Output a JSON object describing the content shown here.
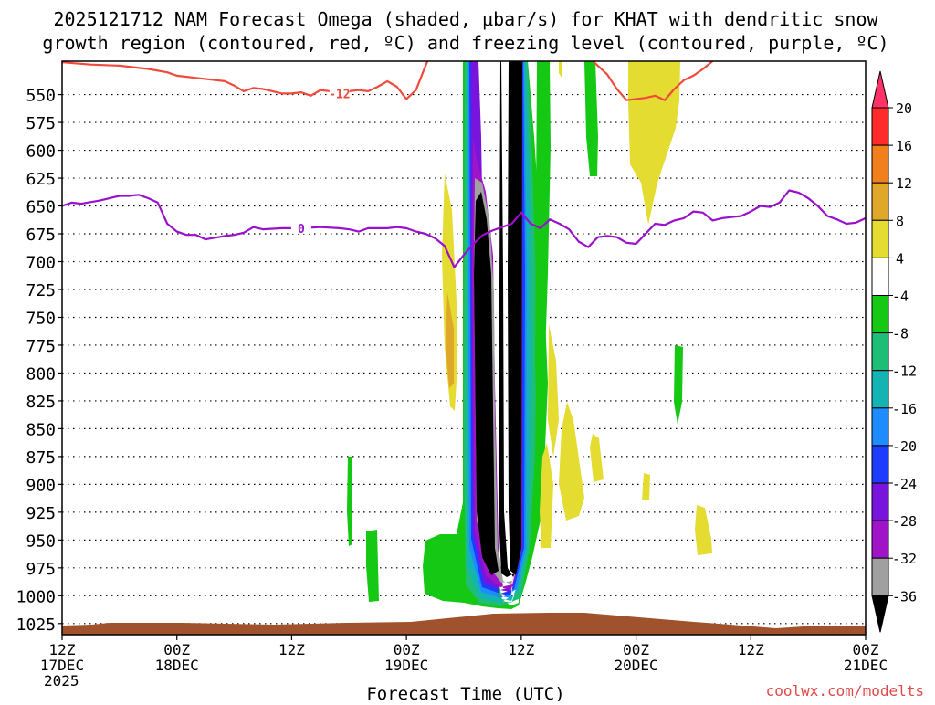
{
  "chart_data": {
    "type": "heatmap",
    "title_lines": [
      "2025121712 NAM Forecast Omega (shaded, μbar/s) for KHAT with dendritic snow",
      "growth region (contoured, red, ºC) and freezing level (contoured, purple, ºC)"
    ],
    "xlabel": "Forecast Time (UTC)",
    "credit": "coolwx.com/modelts",
    "x_range_hours": [
      0,
      84
    ],
    "x_ticks": [
      {
        "h": 0,
        "lines": [
          "12Z",
          "17DEC",
          "2025"
        ]
      },
      {
        "h": 12,
        "lines": [
          "00Z",
          "18DEC"
        ]
      },
      {
        "h": 24,
        "lines": [
          "12Z"
        ]
      },
      {
        "h": 36,
        "lines": [
          "00Z",
          "19DEC"
        ]
      },
      {
        "h": 48,
        "lines": [
          "12Z"
        ]
      },
      {
        "h": 60,
        "lines": [
          "00Z",
          "20DEC"
        ]
      },
      {
        "h": 72,
        "lines": [
          "12Z"
        ]
      },
      {
        "h": 84,
        "lines": [
          "00Z",
          "21DEC"
        ]
      }
    ],
    "y_range_hpa": [
      520,
      1035
    ],
    "y_ticks": [
      550,
      575,
      600,
      625,
      650,
      675,
      700,
      725,
      750,
      775,
      800,
      825,
      850,
      875,
      900,
      925,
      950,
      975,
      1000,
      1025
    ],
    "colorbar": {
      "labels": [
        "20",
        "16",
        "12",
        "8",
        "4",
        "-4",
        "-8",
        "-12",
        "-16",
        "-20",
        "-24",
        "-28",
        "-32",
        "-36"
      ],
      "colors": [
        "#ff3366",
        "#ff2a2a",
        "#f07f1c",
        "#e0a828",
        "#e4dc30",
        "#ffffff",
        "#14c814",
        "#1ebe78",
        "#14b4b4",
        "#1e8cff",
        "#1e3cff",
        "#7814dc",
        "#a014c8",
        "#a0a0a0",
        "#000000"
      ]
    },
    "series": [
      {
        "name": "-12",
        "color": "#f04a3c",
        "label_at_hours": 29,
        "points": [
          [
            0,
            521
          ],
          [
            3,
            523
          ],
          [
            6,
            524
          ],
          [
            9,
            527
          ],
          [
            11,
            530
          ],
          [
            12,
            533
          ],
          [
            14,
            535
          ],
          [
            16,
            537
          ],
          [
            17,
            538
          ],
          [
            18,
            542
          ],
          [
            19,
            547
          ],
          [
            20,
            544
          ],
          [
            21,
            545
          ],
          [
            22,
            547
          ],
          [
            23,
            549
          ],
          [
            24,
            549
          ],
          [
            25,
            548
          ],
          [
            26,
            551
          ],
          [
            27,
            546
          ],
          [
            28,
            547
          ],
          [
            29,
            549
          ],
          [
            30,
            547
          ],
          [
            31,
            546
          ],
          [
            32,
            547
          ],
          [
            33,
            543
          ],
          [
            34,
            538
          ],
          [
            35,
            543
          ],
          [
            36,
            554
          ],
          [
            37,
            546
          ],
          [
            38,
            524
          ],
          [
            38.2,
            520
          ]
        ]
      },
      {
        "name": "-12",
        "color": "#f04a3c",
        "label_at_hours": null,
        "points": [
          [
            55.5,
            520
          ],
          [
            57,
            532
          ],
          [
            58,
            545
          ],
          [
            59,
            555
          ],
          [
            61,
            553
          ],
          [
            62,
            551
          ],
          [
            63,
            555
          ],
          [
            64,
            545
          ],
          [
            65,
            537
          ],
          [
            66,
            533
          ],
          [
            67,
            527
          ],
          [
            68,
            520
          ]
        ]
      },
      {
        "name": "0",
        "color": "#9a10cc",
        "label_at_hours": 25,
        "points": [
          [
            0,
            650
          ],
          [
            1,
            647
          ],
          [
            2,
            648
          ],
          [
            4,
            645
          ],
          [
            6,
            641
          ],
          [
            7,
            641
          ],
          [
            8,
            640
          ],
          [
            9,
            643
          ],
          [
            10,
            647
          ],
          [
            11,
            666
          ],
          [
            12,
            673
          ],
          [
            13,
            676
          ],
          [
            14,
            676
          ],
          [
            15,
            680
          ],
          [
            17,
            677
          ],
          [
            18,
            676
          ],
          [
            19,
            674
          ],
          [
            20,
            669
          ],
          [
            21,
            671
          ],
          [
            23,
            670
          ],
          [
            24,
            670
          ],
          [
            25,
            670
          ],
          [
            27,
            669
          ],
          [
            29,
            670
          ],
          [
            30,
            671
          ],
          [
            31,
            673
          ],
          [
            32,
            670
          ],
          [
            34,
            670
          ],
          [
            35,
            669
          ],
          [
            36,
            670
          ],
          [
            37,
            673
          ],
          [
            38,
            675
          ],
          [
            39,
            679
          ],
          [
            40,
            686
          ],
          [
            41,
            705
          ],
          [
            42,
            694
          ],
          [
            43,
            684
          ],
          [
            44,
            676
          ],
          [
            45,
            672
          ],
          [
            46,
            669
          ],
          [
            47,
            666
          ],
          [
            48,
            656
          ],
          [
            49,
            666
          ],
          [
            50,
            670
          ],
          [
            51,
            662
          ],
          [
            52,
            666
          ],
          [
            53,
            671
          ],
          [
            54,
            682
          ],
          [
            55,
            687
          ],
          [
            56,
            678
          ],
          [
            57,
            677
          ],
          [
            58,
            678
          ],
          [
            59,
            683
          ],
          [
            60,
            684
          ],
          [
            61,
            675
          ],
          [
            62,
            666
          ],
          [
            63,
            667
          ],
          [
            64,
            663
          ],
          [
            65,
            661
          ],
          [
            66,
            655
          ],
          [
            67,
            656
          ],
          [
            68,
            663
          ],
          [
            69,
            661
          ],
          [
            70,
            660
          ],
          [
            71,
            659
          ],
          [
            72,
            655
          ],
          [
            73,
            650
          ],
          [
            74,
            651
          ],
          [
            75,
            647
          ],
          [
            76,
            636
          ],
          [
            77,
            638
          ],
          [
            78,
            643
          ],
          [
            79,
            650
          ],
          [
            80,
            659
          ],
          [
            81,
            662
          ],
          [
            82,
            666
          ],
          [
            83,
            665
          ],
          [
            84,
            661
          ]
        ]
      }
    ]
  }
}
